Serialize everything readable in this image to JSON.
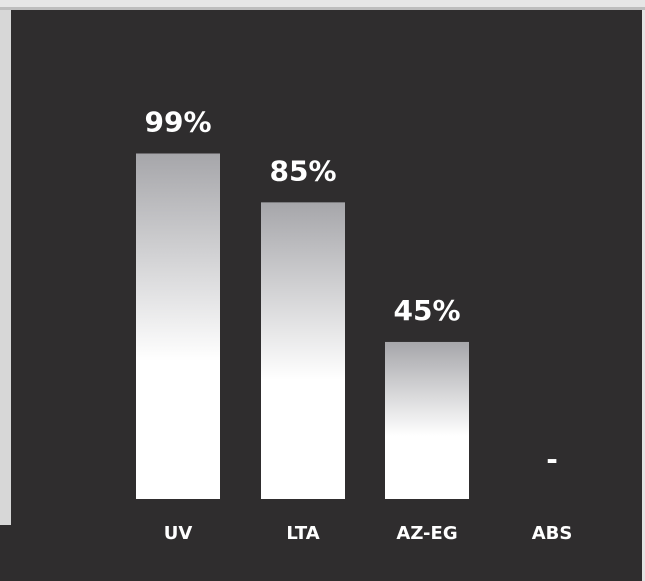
{
  "chart_data": {
    "type": "bar",
    "categories": [
      "UV",
      "LTA",
      "AZ-EG",
      "ABS"
    ],
    "values": [
      99,
      85,
      45,
      null
    ],
    "value_labels": [
      "99%",
      "85%",
      "45%",
      "-"
    ],
    "ylim": [
      0,
      100
    ],
    "grid": false,
    "legend": "none",
    "title": "",
    "xlabel": "",
    "ylabel": ""
  },
  "colors": {
    "background": "#2f2d2e",
    "bar_top": "#a6a6aa",
    "bar_mid": "#ffffff",
    "text": "#ffffff"
  }
}
